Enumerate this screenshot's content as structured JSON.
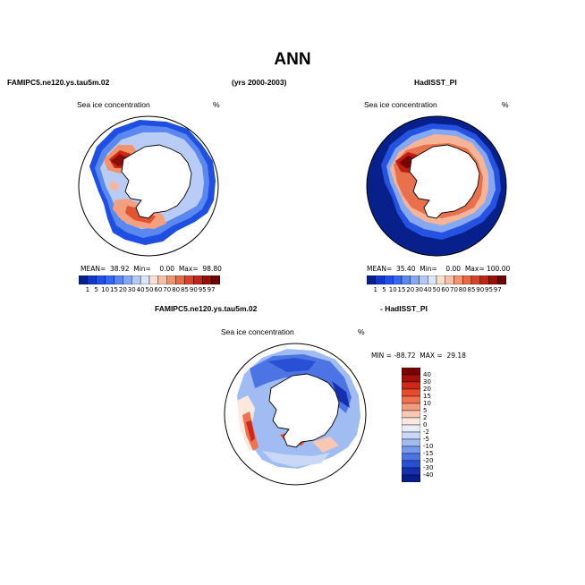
{
  "title": "ANN",
  "top_left": {
    "case_label": "FAMIPC5.ne120.ys.tau5m.02",
    "field_title": "Sea ice concentration",
    "units": "%",
    "stats": "MEAN=  38.92  Min=    0.00  Max=  98.80"
  },
  "top_center": {
    "years": "(yrs 2000-2003)"
  },
  "top_right": {
    "case_label": "HadISST_PI",
    "field_title": "Sea ice concentration",
    "units": "%",
    "stats": "MEAN=  35.40  Min=    0.00  Max= 100.00"
  },
  "bottom": {
    "case_label_left": "FAMIPC5.ne120.ys.tau5m.02",
    "case_label_right": "- HadISST_PI",
    "field_title": "Sea ice concentration",
    "units": "%",
    "minmax": "MIN = -88.72  MAX =  29.18"
  },
  "concentration_colorbar": {
    "labels": [
      "1",
      "5",
      "10",
      "15",
      "20",
      "30",
      "40",
      "50",
      "60",
      "70",
      "80",
      "85",
      "90",
      "95",
      "97"
    ],
    "colors": [
      "#08208c",
      "#1238c8",
      "#2050e6",
      "#3568f0",
      "#5a88f0",
      "#86a8f2",
      "#b4c8f6",
      "#dce6fa",
      "#fbe0d2",
      "#f8c0a8",
      "#f0946e",
      "#e86a45",
      "#d94428",
      "#c02412",
      "#961008",
      "#6e0000"
    ]
  },
  "difference_colorbar": {
    "labels": [
      "40",
      "30",
      "20",
      "15",
      "10",
      "5",
      "2",
      "0",
      "-2",
      "-5",
      "-10",
      "-15",
      "-20",
      "-30",
      "-40"
    ],
    "colors": [
      "#780000",
      "#a80e08",
      "#d02818",
      "#e84a2c",
      "#f07050",
      "#f49c80",
      "#f8c8b4",
      "#fbe8de",
      "#e8eef8",
      "#c8d8f6",
      "#a0bcf2",
      "#7898ec",
      "#4c74e4",
      "#2850d4",
      "#1430b0",
      "#081c8c"
    ]
  }
}
